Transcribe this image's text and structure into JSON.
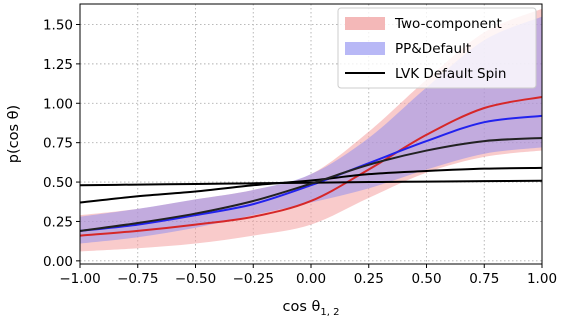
{
  "chart_data": {
    "type": "line",
    "xlabel_base": "cos θ",
    "xlabel_sub": "1, 2",
    "ylabel": "p(cos θ)",
    "xlim": [
      -1.0,
      1.0
    ],
    "ylim": [
      -0.02,
      1.63
    ],
    "xticks": [
      -1.0,
      -0.75,
      -0.5,
      -0.25,
      0.0,
      0.25,
      0.5,
      0.75,
      1.0
    ],
    "xtick_labels": [
      "−1.00",
      "−0.75",
      "−0.50",
      "−0.25",
      "0.00",
      "0.25",
      "0.50",
      "0.75",
      "1.00"
    ],
    "yticks": [
      0.0,
      0.25,
      0.5,
      0.75,
      1.0,
      1.25,
      1.5
    ],
    "ytick_labels": [
      "0.00",
      "0.25",
      "0.50",
      "0.75",
      "1.00",
      "1.25",
      "1.50"
    ],
    "grid": true,
    "grid_style": "dotted",
    "legend_position": "top-right",
    "x": [
      -1.0,
      -0.75,
      -0.5,
      -0.25,
      0.0,
      0.25,
      0.5,
      0.75,
      1.0
    ],
    "bands": [
      {
        "name": "Two-component",
        "color": "#f4a0a0",
        "opacity": 0.55,
        "lower": [
          0.06,
          0.08,
          0.11,
          0.16,
          0.23,
          0.4,
          0.56,
          0.66,
          0.7
        ],
        "upper": [
          0.29,
          0.33,
          0.39,
          0.45,
          0.55,
          0.82,
          1.15,
          1.45,
          1.6
        ]
      },
      {
        "name": "PP&Default",
        "color": "#8c8cf2",
        "opacity": 0.5,
        "lower": [
          0.11,
          0.15,
          0.21,
          0.29,
          0.37,
          0.46,
          0.58,
          0.68,
          0.72
        ],
        "upper": [
          0.28,
          0.33,
          0.39,
          0.45,
          0.55,
          0.78,
          1.1,
          1.4,
          1.55
        ]
      }
    ],
    "series": [
      {
        "name": "Two-component",
        "color": "#d62728",
        "values": [
          0.16,
          0.19,
          0.23,
          0.28,
          0.38,
          0.58,
          0.8,
          0.97,
          1.04
        ]
      },
      {
        "name": "PP&Default",
        "color": "#2222ee",
        "values": [
          0.19,
          0.23,
          0.29,
          0.36,
          0.48,
          0.62,
          0.76,
          0.88,
          0.92
        ]
      },
      {
        "name": "LVK Default Spin",
        "color": "#000000",
        "values": [
          0.48,
          0.484,
          0.488,
          0.492,
          0.496,
          0.5,
          0.503,
          0.506,
          0.508
        ]
      },
      {
        "name": "",
        "color": "#000000",
        "values": [
          0.37,
          0.41,
          0.44,
          0.48,
          0.51,
          0.55,
          0.57,
          0.585,
          0.59
        ]
      },
      {
        "name": "",
        "color": "#222222",
        "values": [
          0.19,
          0.24,
          0.3,
          0.38,
          0.49,
          0.61,
          0.7,
          0.76,
          0.78
        ]
      }
    ],
    "legend": [
      {
        "label": "Two-component",
        "kind": "patch",
        "color": "#f4b8b8"
      },
      {
        "label": "PP&Default",
        "kind": "patch",
        "color": "#b8b8f6"
      },
      {
        "label": "LVK Default Spin",
        "kind": "line",
        "color": "#000000"
      }
    ]
  }
}
